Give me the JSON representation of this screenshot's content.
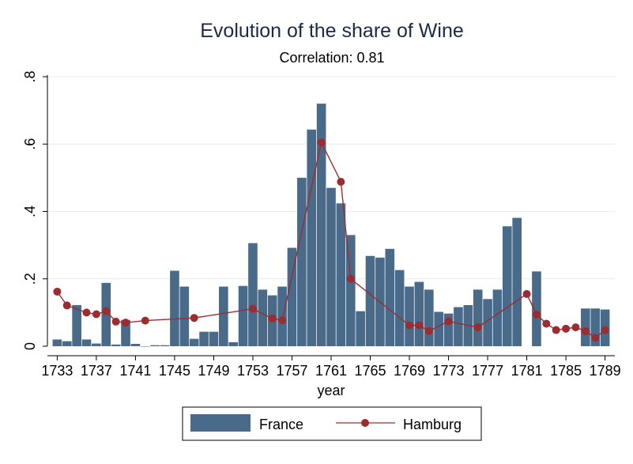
{
  "chart_data": {
    "type": "bar",
    "title": "Evolution of the share of Wine",
    "subtitle": "Correlation: 0.81",
    "xlabel": "year",
    "ylabel": "",
    "xlim": [
      1732,
      1790
    ],
    "ylim": [
      0,
      0.8
    ],
    "x_ticks": [
      1733,
      1737,
      1741,
      1745,
      1749,
      1753,
      1757,
      1761,
      1765,
      1769,
      1773,
      1777,
      1781,
      1785,
      1789
    ],
    "y_ticks": [
      {
        "value": 0,
        "label": "0"
      },
      {
        "value": 0.2,
        "label": ".2"
      },
      {
        "value": 0.4,
        "label": ".4"
      },
      {
        "value": 0.6,
        "label": ".6"
      },
      {
        "value": 0.8,
        "label": ".8"
      }
    ],
    "grid": true,
    "legend_position": "bottom",
    "colors": {
      "France": "#4a6a8a",
      "Hamburg": "#9b2d30",
      "grid": "#e6ecf0",
      "axis": "#000000",
      "title": "#1a2a48"
    },
    "series": [
      {
        "name": "France",
        "kind": "bar",
        "x": [
          1733,
          1734,
          1735,
          1736,
          1737,
          1738,
          1739,
          1740,
          1741,
          1742,
          1743,
          1744,
          1745,
          1746,
          1747,
          1748,
          1749,
          1750,
          1751,
          1752,
          1753,
          1754,
          1755,
          1756,
          1757,
          1758,
          1759,
          1760,
          1761,
          1762,
          1763,
          1764,
          1765,
          1766,
          1767,
          1768,
          1769,
          1770,
          1771,
          1772,
          1773,
          1774,
          1775,
          1776,
          1777,
          1778,
          1779,
          1780,
          1781,
          1782,
          1783,
          1784,
          1785,
          1786,
          1787,
          1788,
          1789
        ],
        "y": [
          0.02,
          0.015,
          0.122,
          0.02,
          0.008,
          0.188,
          0.005,
          0.078,
          0.007,
          0,
          0.003,
          0.003,
          0.224,
          0.177,
          0.022,
          0.043,
          0.043,
          0.177,
          0.012,
          0.179,
          0.306,
          0.168,
          0.151,
          0.177,
          0.292,
          0.5,
          0.643,
          0.72,
          0.47,
          0.424,
          0.33,
          0.104,
          0.268,
          0.263,
          0.289,
          0.226,
          0.177,
          0.191,
          0.168,
          0.102,
          0.097,
          0.116,
          0.122,
          0.168,
          0.14,
          0.168,
          0.356,
          0.381,
          null,
          0.222,
          null,
          null,
          null,
          null,
          0.112,
          0.112,
          0.109
        ]
      },
      {
        "name": "Hamburg",
        "kind": "line",
        "x": [
          1733,
          1734,
          1736,
          1737,
          1738,
          1739,
          1740,
          1742,
          1747,
          1753,
          1755,
          1756,
          1760,
          1762,
          1763,
          1769,
          1770,
          1771,
          1773,
          1776,
          1781,
          1782,
          1783,
          1784,
          1785,
          1786,
          1787,
          1788,
          1789
        ],
        "y": [
          0.162,
          0.121,
          0.1,
          0.095,
          0.104,
          0.073,
          0.07,
          0.076,
          0.084,
          0.111,
          0.082,
          0.077,
          0.605,
          0.488,
          0.2,
          0.062,
          0.062,
          0.045,
          0.074,
          0.056,
          0.155,
          0.094,
          0.067,
          0.048,
          0.052,
          0.056,
          0.045,
          0.025,
          0.048
        ]
      }
    ]
  }
}
